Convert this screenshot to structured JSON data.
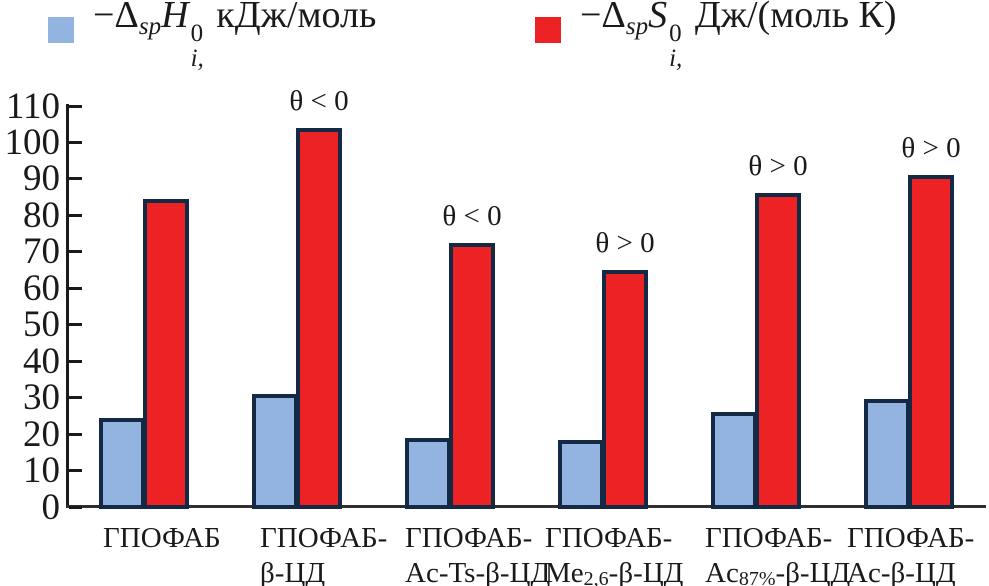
{
  "chart_data": {
    "type": "bar",
    "title": "",
    "grid": false,
    "legend_position": "top",
    "ylim": [
      0,
      110
    ],
    "ytick_step": 10,
    "yticks": [
      0,
      10,
      20,
      30,
      40,
      50,
      60,
      70,
      80,
      90,
      100,
      110
    ],
    "legend": [
      {
        "key": "H",
        "color": "#93b3e0",
        "prefix": "−Δ",
        "prefix_sub": "sp",
        "variable": "H",
        "sup": "0",
        "sub": "i,",
        "suffix": " кДж/моль"
      },
      {
        "key": "S",
        "color": "#ec2224",
        "prefix": "−Δ",
        "prefix_sub": "sp",
        "variable": "S",
        "sup": "0",
        "sub": "i,",
        "suffix": " Дж/(моль К)"
      }
    ],
    "categories": [
      {
        "name": "ГПОФАБ",
        "lines": [
          [
            {
              "t": "ГПОФАБ"
            }
          ]
        ]
      },
      {
        "name": "ГПОФАБ-β-ЦД",
        "lines": [
          [
            {
              "t": "ГПОФАБ-"
            }
          ],
          [
            {
              "t": "β-ЦД"
            }
          ]
        ]
      },
      {
        "name": "ГПОФАБ-Ac-Ts-β-ЦД",
        "lines": [
          [
            {
              "t": "ГПОФАБ-"
            }
          ],
          [
            {
              "t": "Ac-Ts-β-ЦД"
            }
          ]
        ]
      },
      {
        "name": "ГПОФАБ-Me2,6-β-ЦД",
        "lines": [
          [
            {
              "t": "ГПОФАБ-"
            }
          ],
          [
            {
              "t": "Me"
            },
            {
              "t": "2,6",
              "sub": true
            },
            {
              "t": "-β-ЦД"
            }
          ]
        ]
      },
      {
        "name": "ГПОФАБ-Ac87%-β-ЦД",
        "lines": [
          [
            {
              "t": "ГПОФАБ-"
            }
          ],
          [
            {
              "t": "Ac"
            },
            {
              "t": "87%",
              "sub": true
            },
            {
              "t": "-β-ЦД"
            }
          ]
        ]
      },
      {
        "name": "ГПОФАБ-Ac-β-ЦД",
        "lines": [
          [
            {
              "t": "ГПОФАБ-"
            }
          ],
          [
            {
              "t": "Ac-β-ЦД"
            }
          ]
        ]
      }
    ],
    "series": [
      {
        "key": "H",
        "name": "−ΔspHi0, кДж/моль",
        "color": "#93b3e0",
        "values": [
          24.5,
          31,
          19,
          18.5,
          26,
          29.5
        ]
      },
      {
        "key": "S",
        "name": "−ΔspSi0, Дж/(моль К)",
        "color": "#ec2224",
        "values": [
          84.5,
          104,
          72.5,
          65,
          86,
          91
        ]
      }
    ],
    "annotations": [
      null,
      "θ < 0",
      "θ < 0",
      "θ > 0",
      "θ > 0",
      "θ > 0"
    ]
  }
}
